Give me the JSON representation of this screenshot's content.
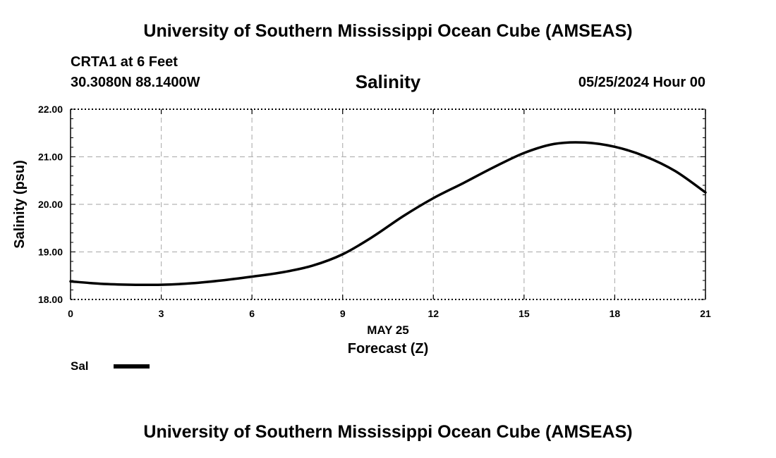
{
  "header": {
    "title": "University of Southern Mississippi Ocean Cube (AMSEAS)",
    "station": "CRTA1 at 6 Feet",
    "coordinates": "30.3080N  88.1400W",
    "variable": "Salinity",
    "datetime": "05/25/2024 Hour 00"
  },
  "legend": {
    "label": "Sal"
  },
  "footer": {
    "title": "University of Southern Mississippi Ocean Cube (AMSEAS)"
  },
  "chart_data": {
    "type": "line",
    "title": "Salinity",
    "xlabel": "Forecast (Z)",
    "xlabel_date": "MAY 25",
    "ylabel": "Salinity (psu)",
    "xlim": [
      0,
      21
    ],
    "ylim": [
      18,
      22
    ],
    "x_ticks": [
      0,
      3,
      6,
      9,
      12,
      15,
      18,
      21
    ],
    "y_ticks": [
      18,
      19,
      20,
      21,
      22
    ],
    "y_tick_labels": [
      "18.00",
      "19.00",
      "20.00",
      "21.00",
      "22.00"
    ],
    "grid": true,
    "series": [
      {
        "name": "Sal",
        "color": "#000000",
        "x": [
          0,
          1,
          2,
          3,
          4,
          5,
          6,
          7,
          8,
          9,
          10,
          11,
          12,
          13,
          14,
          15,
          16,
          17,
          18,
          19,
          20,
          21
        ],
        "values": [
          18.38,
          18.33,
          18.31,
          18.31,
          18.34,
          18.4,
          18.48,
          18.57,
          18.71,
          18.95,
          19.32,
          19.75,
          20.13,
          20.45,
          20.78,
          21.08,
          21.27,
          21.3,
          21.21,
          21.01,
          20.7,
          20.25
        ]
      }
    ]
  }
}
